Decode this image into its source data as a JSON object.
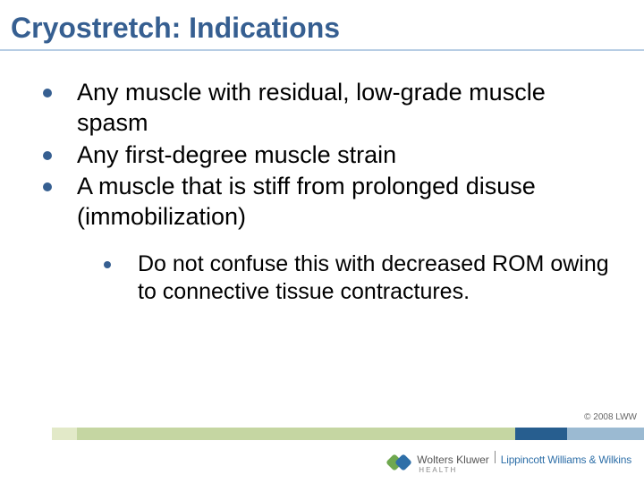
{
  "title": "Cryostretch: Indications",
  "title_color": "#365f91",
  "title_fontsize": 32,
  "title_underline_color": "#b7cde4",
  "body_text_color": "#000000",
  "body_fontsize": 27,
  "sub_body_fontsize": 25,
  "bullet_color": "#365f91",
  "bullets": {
    "0": "Any muscle with residual, low-grade muscle spasm",
    "1": "Any first-degree muscle strain",
    "2": "A muscle that is stiff from prolonged disuse (immobilization)"
  },
  "sub_bullets": {
    "0": "Do not confuse this with decreased ROM owing to connective tissue contractures."
  },
  "copyright": "© 2008 LWW",
  "footer_band_colors": [
    "#ffffff",
    "#e2e9c8",
    "#c5d6a2",
    "#275e8f",
    "#9bbad2"
  ],
  "brand": {
    "wk": "Wolters Kluwer",
    "lww": "Lippincott Williams & Wilkins",
    "sub": "HEALTH",
    "wk_color": "#555555",
    "lww_color": "#2e6fa8",
    "logo_green": "#6fa84f",
    "logo_blue": "#2e6fa8"
  },
  "background_color": "#ffffff"
}
